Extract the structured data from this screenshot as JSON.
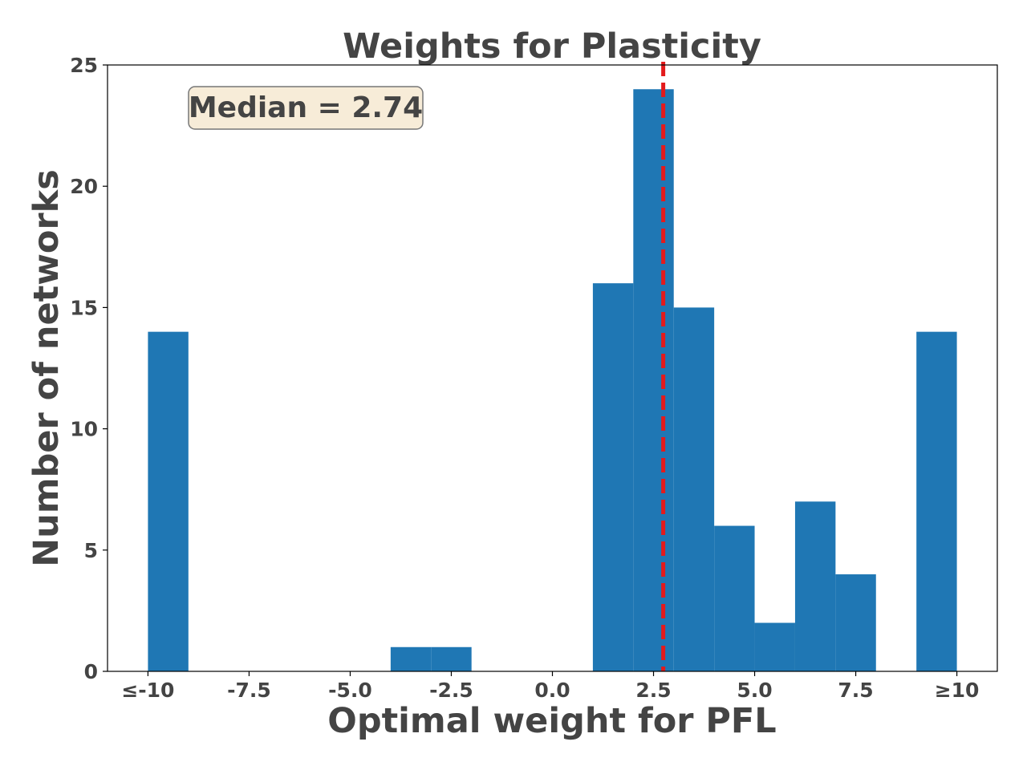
{
  "chart_data": {
    "type": "bar",
    "title": "Weights for Plasticity",
    "xlabel": "Optimal weight for PFL",
    "ylabel": "Number of networks",
    "xlim": [
      -11,
      11
    ],
    "ylim": [
      0,
      25
    ],
    "x_tick_values": [
      -10,
      -7.5,
      -5.0,
      -2.5,
      0.0,
      2.5,
      5.0,
      7.5,
      10
    ],
    "x_tick_labels": [
      "≤-10",
      "-7.5",
      "-5.0",
      "-2.5",
      "0.0",
      "2.5",
      "5.0",
      "7.5",
      "≥10"
    ],
    "y_tick_values": [
      0,
      5,
      10,
      15,
      20,
      25
    ],
    "y_tick_labels": [
      "0",
      "5",
      "10",
      "15",
      "20",
      "25"
    ],
    "bar_color": "#1f77b4",
    "bins": [
      {
        "x0": -10,
        "x1": -9,
        "count": 14
      },
      {
        "x0": -4,
        "x1": -3,
        "count": 1
      },
      {
        "x0": -3,
        "x1": -2,
        "count": 1
      },
      {
        "x0": 1,
        "x1": 2,
        "count": 16
      },
      {
        "x0": 2,
        "x1": 3,
        "count": 24
      },
      {
        "x0": 3,
        "x1": 4,
        "count": 15
      },
      {
        "x0": 4,
        "x1": 5,
        "count": 6
      },
      {
        "x0": 5,
        "x1": 6,
        "count": 2
      },
      {
        "x0": 6,
        "x1": 7,
        "count": 7
      },
      {
        "x0": 7,
        "x1": 8,
        "count": 4
      },
      {
        "x0": 9,
        "x1": 10,
        "count": 14
      }
    ],
    "median": {
      "value": 2.74,
      "label": "Median = 2.74",
      "color": "#e31a1c"
    },
    "annotation_box": {
      "fill": "#f7ecd8",
      "stroke": "#777777"
    }
  }
}
